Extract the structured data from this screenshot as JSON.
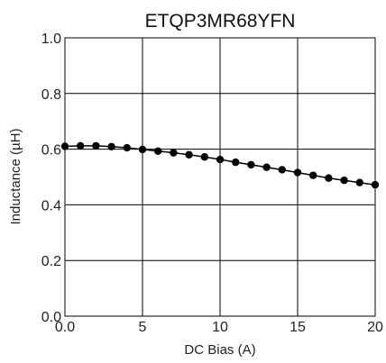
{
  "chart_data": {
    "type": "line",
    "title": "ETQP3MR68YFN",
    "xlabel": "DC Bias (A)",
    "ylabel": "Inductance (µH)",
    "xlim": [
      0,
      20
    ],
    "ylim": [
      0,
      1.0
    ],
    "x_ticks": [
      "0.0",
      "5",
      "10",
      "15",
      "20"
    ],
    "y_ticks": [
      "0.0",
      "0.2",
      "0.4",
      "0.6",
      "0.8",
      "1.0"
    ],
    "grid": true,
    "series": [
      {
        "x": [
          0,
          1,
          2,
          3,
          4,
          5,
          6,
          7,
          8,
          9,
          10,
          11,
          12,
          13,
          14,
          15,
          16,
          17,
          18,
          19,
          20
        ],
        "values": [
          0.61,
          0.612,
          0.612,
          0.609,
          0.605,
          0.599,
          0.593,
          0.587,
          0.58,
          0.572,
          0.563,
          0.553,
          0.544,
          0.535,
          0.526,
          0.516,
          0.506,
          0.496,
          0.488,
          0.48,
          0.472
        ],
        "color": "#000000",
        "marker": "circle"
      }
    ]
  }
}
